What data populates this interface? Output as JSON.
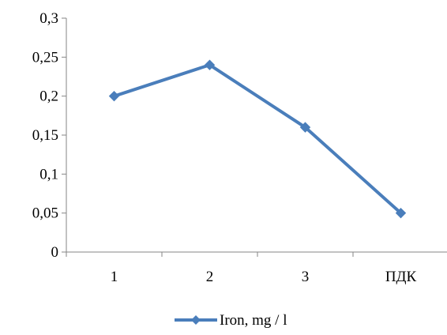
{
  "chart_data": {
    "type": "line",
    "categories": [
      "1",
      "2",
      "3",
      "ПДК"
    ],
    "series": [
      {
        "name": "Iron, mg / l",
        "values": [
          0.2,
          0.24,
          0.16,
          0.05
        ],
        "color": "#4a7ebb",
        "marker": "diamond"
      }
    ],
    "y_ticks": [
      "0",
      "0,05",
      "0,1",
      "0,15",
      "0,2",
      "0,25",
      "0,3"
    ],
    "ylim": [
      0,
      0.3
    ],
    "grid": false,
    "legend_position": "bottom"
  }
}
